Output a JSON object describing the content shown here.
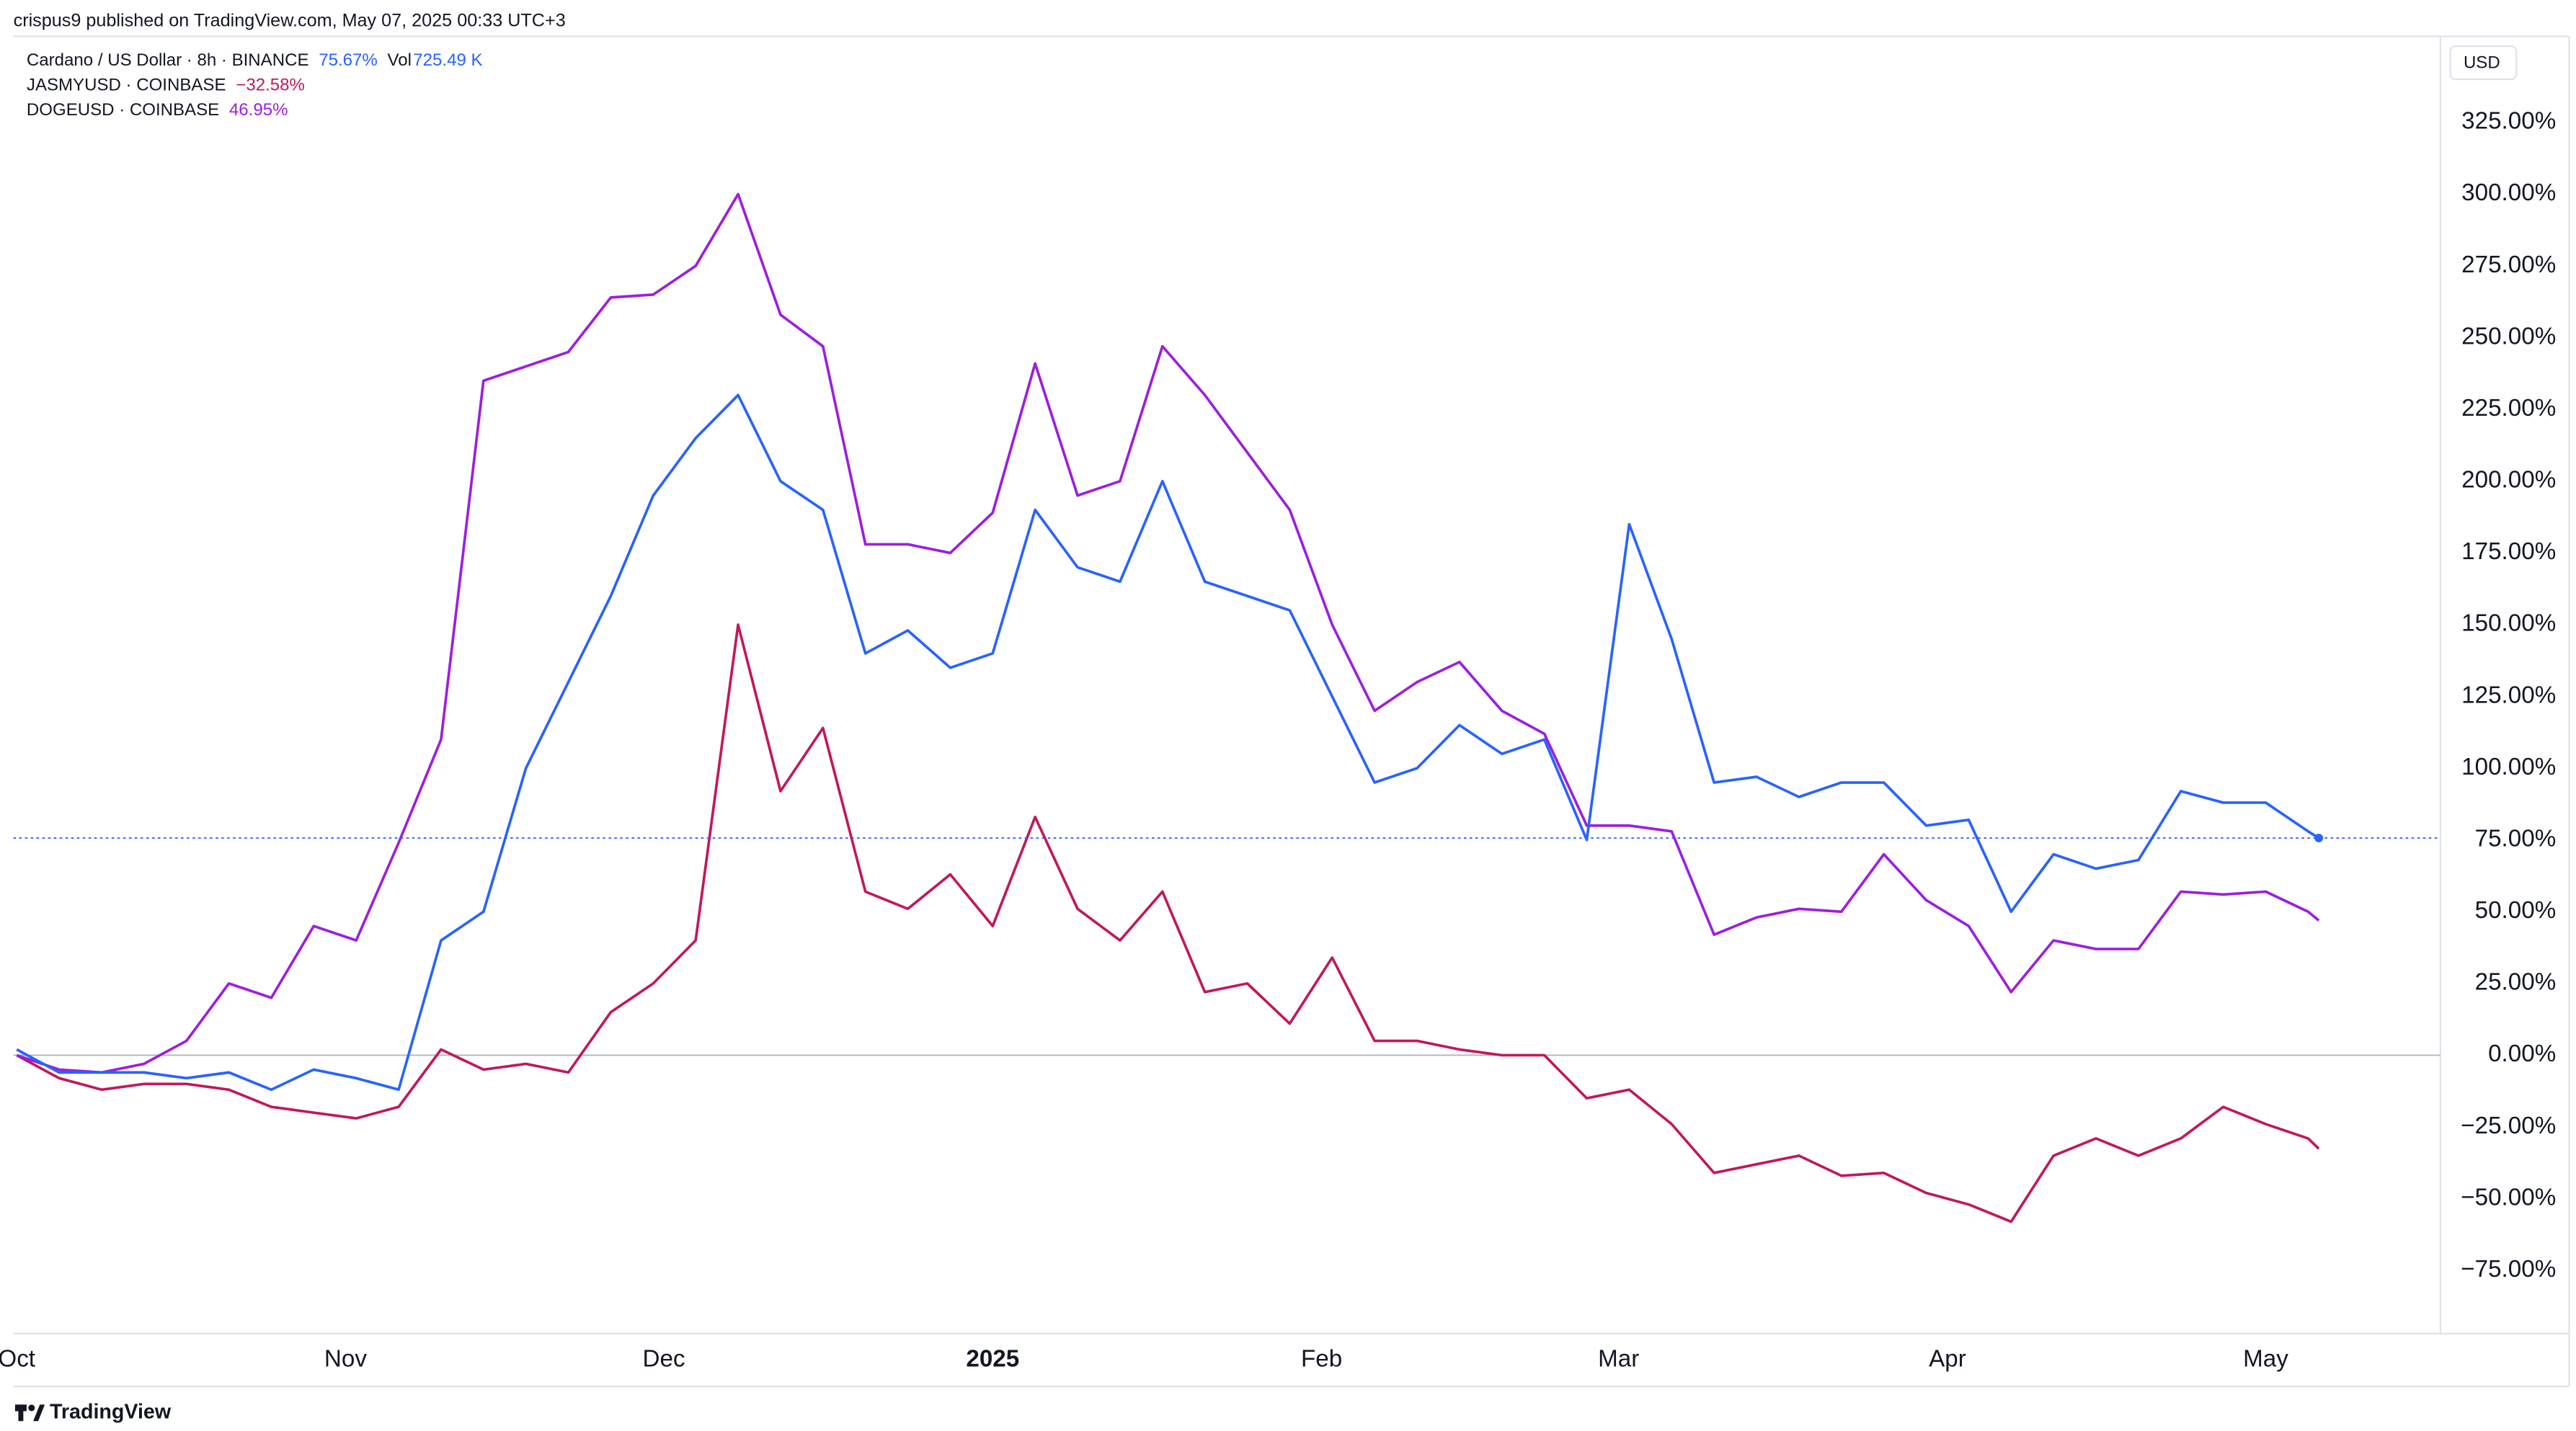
{
  "header": {
    "publisher": "crispus9 published on TradingView.com, May 07, 2025 00:33 UTC+3",
    "currency": "USD",
    "footer": "TradingView"
  },
  "chart_data": {
    "type": "line",
    "volume_prefix": "Vol",
    "volume": "725.49 K",
    "x": [
      0,
      4,
      8,
      12,
      16,
      20,
      24,
      28,
      32,
      36,
      40,
      44,
      48,
      52,
      56,
      60,
      64,
      68,
      72,
      76,
      80,
      84,
      88,
      92,
      96,
      100,
      104,
      108,
      112,
      116,
      120,
      124,
      128,
      132,
      136,
      140,
      144,
      148,
      152,
      156,
      160,
      164,
      168,
      172,
      176,
      180,
      184,
      188,
      192,
      196,
      200,
      204,
      208,
      212,
      216,
      217
    ],
    "xlim": [
      0,
      228
    ],
    "xticks": [
      {
        "value": 0,
        "label": "Oct"
      },
      {
        "value": 31,
        "label": "Nov"
      },
      {
        "value": 61,
        "label": "Dec"
      },
      {
        "value": 92,
        "label": "2025"
      },
      {
        "value": 123,
        "label": "Feb"
      },
      {
        "value": 151,
        "label": "Mar"
      },
      {
        "value": 182,
        "label": "Apr"
      },
      {
        "value": 212,
        "label": "May"
      }
    ],
    "ylim": [
      -97,
      355
    ],
    "yticks": [
      {
        "value": -75,
        "label": "−75.00%"
      },
      {
        "value": -50,
        "label": "−50.00%"
      },
      {
        "value": -25,
        "label": "−25.00%"
      },
      {
        "value": 0,
        "label": "0.00%"
      },
      {
        "value": 25,
        "label": "25.00%"
      },
      {
        "value": 50,
        "label": "50.00%"
      },
      {
        "value": 75,
        "label": "75.00%"
      },
      {
        "value": 100,
        "label": "100.00%"
      },
      {
        "value": 125,
        "label": "125.00%"
      },
      {
        "value": 150,
        "label": "150.00%"
      },
      {
        "value": 175,
        "label": "175.00%"
      },
      {
        "value": 200,
        "label": "200.00%"
      },
      {
        "value": 225,
        "label": "225.00%"
      },
      {
        "value": 250,
        "label": "250.00%"
      },
      {
        "value": 275,
        "label": "275.00%"
      },
      {
        "value": 300,
        "label": "300.00%"
      },
      {
        "value": 325,
        "label": "325.00%"
      }
    ],
    "series": [
      {
        "name": "Cardano / US Dollar · 8h · BINANCE",
        "color": "#2962ff",
        "last_label": "75.67%",
        "values": [
          2,
          -6,
          -6,
          -6,
          -8,
          -6,
          -12,
          -5,
          -8,
          -12,
          40,
          50,
          100,
          130,
          160,
          195,
          215,
          230,
          200,
          190,
          140,
          148,
          135,
          140,
          190,
          170,
          165,
          200,
          165,
          160,
          155,
          125,
          95,
          100,
          115,
          105,
          110,
          75,
          185,
          145,
          95,
          97,
          90,
          95,
          95,
          80,
          82,
          50,
          70,
          65,
          68,
          92,
          88,
          88,
          78,
          75.67
        ]
      },
      {
        "name": "JASMYUSD · COINBASE",
        "color": "#c2185b",
        "last_label": "−32.58%",
        "values": [
          0,
          -8,
          -12,
          -10,
          -10,
          -12,
          -18,
          -20,
          -22,
          -18,
          2,
          -5,
          -3,
          -6,
          15,
          25,
          40,
          150,
          92,
          114,
          57,
          51,
          63,
          45,
          83,
          51,
          40,
          57,
          22,
          25,
          11,
          34,
          5,
          5,
          2,
          0,
          0,
          -15,
          -12,
          -24,
          -41,
          -38,
          -35,
          -42,
          -41,
          -48,
          -52,
          -58,
          -35,
          -29,
          -35,
          -29,
          -18,
          -24,
          -29,
          -32.58
        ]
      },
      {
        "name": "DOGEUSD · COINBASE",
        "color": "#9c1ee0",
        "last_label": "46.95%",
        "values": [
          0,
          -5,
          -6,
          -3,
          5,
          25,
          20,
          45,
          40,
          74,
          110,
          235,
          240,
          245,
          264,
          265,
          275,
          300,
          258,
          247,
          178,
          178,
          175,
          189,
          241,
          195,
          200,
          247,
          230,
          210,
          190,
          150,
          120,
          130,
          137,
          120,
          112,
          80,
          80,
          78,
          42,
          48,
          51,
          50,
          70,
          54,
          45,
          22,
          40,
          37,
          37,
          57,
          56,
          57,
          50,
          46.95
        ]
      }
    ]
  }
}
